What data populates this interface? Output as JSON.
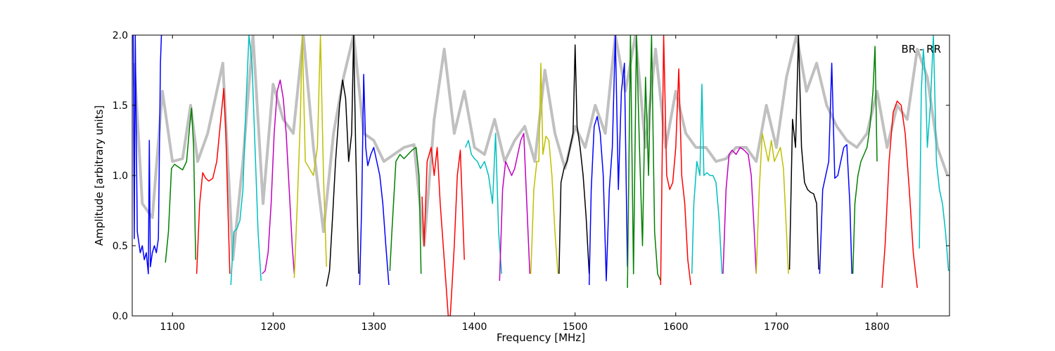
{
  "chart_data": {
    "type": "line",
    "title": "",
    "xlabel": "Frequency [MHz]",
    "ylabel": "Amplitude [arbitrary units]",
    "xlim": [
      1060,
      1872
    ],
    "ylim": [
      0,
      2.0
    ],
    "xticks": [
      1100,
      1200,
      1300,
      1400,
      1500,
      1600,
      1700,
      1800
    ],
    "yticks": [
      0.0,
      0.5,
      1.0,
      1.5,
      2.0
    ],
    "xtick_labels": [
      "1100",
      "1200",
      "1300",
      "1400",
      "1500",
      "1600",
      "1700",
      "1800"
    ],
    "ytick_labels": [
      "0.0",
      "0.5",
      "1.0",
      "1.5",
      "2.0"
    ],
    "grid": false,
    "annotation": "BR - RR",
    "background_color": "#c0c0c0",
    "background_series": {
      "x": [
        1062,
        1070,
        1080,
        1090,
        1100,
        1110,
        1118,
        1125,
        1135,
        1150,
        1160,
        1170,
        1180,
        1190,
        1200,
        1210,
        1220,
        1230,
        1240,
        1250,
        1260,
        1270,
        1280,
        1290,
        1300,
        1310,
        1320,
        1330,
        1340,
        1350,
        1360,
        1370,
        1380,
        1390,
        1400,
        1410,
        1420,
        1430,
        1440,
        1450,
        1460,
        1470,
        1480,
        1490,
        1500,
        1510,
        1520,
        1530,
        1540,
        1550,
        1560,
        1570,
        1580,
        1590,
        1600,
        1610,
        1620,
        1630,
        1640,
        1650,
        1660,
        1670,
        1680,
        1690,
        1700,
        1710,
        1720,
        1730,
        1740,
        1750,
        1760,
        1770,
        1780,
        1790,
        1800,
        1810,
        1820,
        1830,
        1840,
        1850,
        1860,
        1870
      ],
      "y": [
        1.8,
        0.8,
        0.7,
        1.6,
        1.1,
        1.12,
        1.5,
        1.1,
        1.3,
        1.8,
        0.4,
        1.1,
        2.0,
        0.8,
        1.65,
        1.4,
        1.3,
        2.0,
        1.2,
        0.6,
        1.3,
        1.7,
        2.0,
        1.3,
        1.25,
        1.1,
        1.15,
        1.2,
        1.22,
        0.5,
        1.4,
        1.9,
        1.3,
        1.6,
        1.2,
        1.15,
        1.4,
        1.1,
        1.25,
        1.35,
        1.1,
        1.75,
        1.3,
        1.05,
        1.35,
        1.2,
        1.5,
        1.3,
        2.0,
        1.6,
        2.0,
        1.2,
        1.9,
        1.2,
        1.6,
        1.3,
        1.2,
        1.2,
        1.1,
        1.12,
        1.2,
        1.2,
        1.1,
        1.5,
        1.2,
        1.7,
        2.0,
        1.6,
        1.8,
        1.5,
        1.35,
        1.25,
        1.2,
        1.3,
        1.6,
        1.2,
        1.5,
        1.4,
        1.9,
        1.7,
        1.2,
        1.0
      ]
    },
    "series": [
      {
        "color": "#0000ff",
        "x": [
          1061,
          1062,
          1063,
          1065,
          1068,
          1070,
          1072,
          1074,
          1076,
          1077,
          1078,
          1080,
          1082,
          1084,
          1086,
          1088,
          1089,
          1090
        ],
        "y": [
          2.0,
          0.55,
          2.0,
          0.6,
          0.45,
          0.5,
          0.4,
          0.45,
          0.3,
          1.25,
          0.35,
          0.45,
          0.5,
          0.45,
          0.55,
          1.8,
          2.0,
          2.0
        ]
      },
      {
        "color": "#008000",
        "x": [
          1093,
          1096,
          1099,
          1102,
          1106,
          1110,
          1114,
          1117,
          1119,
          1121,
          1123
        ],
        "y": [
          0.38,
          0.6,
          1.05,
          1.08,
          1.06,
          1.04,
          1.1,
          1.35,
          1.48,
          1.2,
          0.4
        ]
      },
      {
        "color": "#ff0000",
        "x": [
          1124,
          1127,
          1130,
          1133,
          1136,
          1140,
          1144,
          1148,
          1151,
          1153,
          1155,
          1157
        ],
        "y": [
          0.3,
          0.8,
          1.02,
          0.98,
          0.96,
          0.98,
          1.1,
          1.4,
          1.62,
          1.3,
          0.8,
          0.3
        ]
      },
      {
        "color": "#00bfbf",
        "x": [
          1158,
          1161,
          1164,
          1167,
          1170,
          1173,
          1176,
          1179,
          1182,
          1185,
          1188
        ],
        "y": [
          0.22,
          0.6,
          0.62,
          0.68,
          0.9,
          1.5,
          2.0,
          1.8,
          1.2,
          0.6,
          0.25
        ]
      },
      {
        "color": "#bf00bf",
        "x": [
          1189,
          1192,
          1195,
          1198,
          1201,
          1204,
          1207,
          1210,
          1213,
          1216,
          1219,
          1221
        ],
        "y": [
          0.3,
          0.32,
          0.45,
          0.8,
          1.3,
          1.6,
          1.68,
          1.55,
          1.3,
          0.9,
          0.5,
          0.3
        ]
      },
      {
        "color": "#bfbf00",
        "x": [
          1221,
          1224,
          1227,
          1229,
          1232,
          1236,
          1240,
          1244,
          1247,
          1250,
          1253
        ],
        "y": [
          0.27,
          0.8,
          1.4,
          2.0,
          1.1,
          1.05,
          1.0,
          1.2,
          2.0,
          1.0,
          0.35
        ]
      },
      {
        "color": "#000000",
        "x": [
          1253,
          1256,
          1259,
          1262,
          1266,
          1269,
          1272,
          1275,
          1278,
          1280,
          1282,
          1285
        ],
        "y": [
          0.21,
          0.32,
          0.7,
          1.1,
          1.5,
          1.68,
          1.55,
          1.1,
          1.3,
          2.0,
          1.2,
          0.3
        ]
      },
      {
        "color": "#0000ff",
        "x": [
          1286,
          1288,
          1290,
          1292,
          1294,
          1297,
          1300,
          1303,
          1306,
          1309,
          1312,
          1315
        ],
        "y": [
          0.22,
          0.8,
          1.72,
          1.2,
          1.07,
          1.15,
          1.2,
          1.1,
          1.0,
          0.8,
          0.5,
          0.22
        ]
      },
      {
        "color": "#008000",
        "x": [
          1316,
          1318,
          1322,
          1326,
          1330,
          1334,
          1338,
          1342,
          1345,
          1347
        ],
        "y": [
          0.32,
          0.6,
          1.1,
          1.15,
          1.12,
          1.15,
          1.18,
          1.2,
          1.0,
          0.3
        ]
      },
      {
        "color": "#ff0000",
        "x": [
          1348,
          1350,
          1353,
          1357,
          1360,
          1363,
          1366,
          1369,
          1372,
          1374,
          1376,
          1378,
          1380,
          1383,
          1386,
          1390
        ],
        "y": [
          0.85,
          0.5,
          1.1,
          1.2,
          1.0,
          1.2,
          0.8,
          0.5,
          0.2,
          0.0,
          0.0,
          0.25,
          0.5,
          1.0,
          1.18,
          0.4
        ]
      },
      {
        "color": "#00bfbf",
        "x": [
          1391,
          1394,
          1397,
          1400,
          1403,
          1406,
          1410,
          1414,
          1418,
          1421,
          1424,
          1427
        ],
        "y": [
          1.2,
          1.25,
          1.15,
          1.12,
          1.1,
          1.05,
          1.1,
          1.0,
          0.8,
          1.3,
          0.6,
          0.3
        ]
      },
      {
        "color": "#bf00bf",
        "x": [
          1425,
          1428,
          1431,
          1434,
          1437,
          1440,
          1443,
          1446,
          1449,
          1452,
          1455
        ],
        "y": [
          0.25,
          0.9,
          1.1,
          1.05,
          1.0,
          1.05,
          1.15,
          1.25,
          1.3,
          0.8,
          0.3
        ]
      },
      {
        "color": "#bfbf00",
        "x": [
          1456,
          1459,
          1462,
          1464,
          1466,
          1468,
          1471,
          1474,
          1477,
          1480,
          1483
        ],
        "y": [
          0.3,
          0.9,
          1.1,
          1.1,
          1.8,
          1.15,
          1.28,
          1.25,
          1.0,
          0.6,
          0.3
        ]
      },
      {
        "color": "#000000",
        "x": [
          1484,
          1486,
          1489,
          1492,
          1495,
          1498,
          1500,
          1502,
          1505,
          1508,
          1511,
          1514
        ],
        "y": [
          0.3,
          0.95,
          1.05,
          1.1,
          1.2,
          1.3,
          1.93,
          1.35,
          1.2,
          1.0,
          0.7,
          0.3
        ]
      },
      {
        "color": "#0000ff",
        "x": [
          1514,
          1516,
          1519,
          1522,
          1525,
          1528,
          1531,
          1534,
          1537,
          1540,
          1543,
          1546,
          1549,
          1552
        ],
        "y": [
          0.22,
          0.9,
          1.35,
          1.42,
          1.3,
          1.0,
          0.25,
          0.9,
          1.2,
          2.0,
          0.9,
          1.6,
          1.8,
          0.35
        ]
      },
      {
        "color": "#008000",
        "x": [
          1552,
          1555,
          1558,
          1561,
          1564,
          1567,
          1570,
          1573,
          1576,
          1579,
          1582,
          1585
        ],
        "y": [
          0.2,
          2.0,
          0.3,
          2.0,
          1.2,
          0.5,
          1.7,
          1.0,
          2.0,
          0.6,
          0.3,
          0.25
        ]
      },
      {
        "color": "#ff0000",
        "x": [
          1585,
          1588,
          1591,
          1594,
          1597,
          1600,
          1603,
          1606,
          1609,
          1612,
          1615
        ],
        "y": [
          0.22,
          2.0,
          1.0,
          0.9,
          0.95,
          1.2,
          1.76,
          1.0,
          0.8,
          0.4,
          0.22
        ]
      },
      {
        "color": "#00bfbf",
        "x": [
          1616,
          1618,
          1621,
          1624,
          1626,
          1628,
          1631,
          1634,
          1637,
          1640,
          1643,
          1646
        ],
        "y": [
          0.3,
          0.8,
          1.1,
          1.0,
          1.65,
          1.0,
          1.02,
          1.0,
          1.0,
          0.95,
          0.7,
          0.3
        ]
      },
      {
        "color": "#bf00bf",
        "x": [
          1647,
          1650,
          1653,
          1656,
          1660,
          1664,
          1668,
          1672,
          1675,
          1678,
          1680
        ],
        "y": [
          0.3,
          0.9,
          1.15,
          1.18,
          1.15,
          1.2,
          1.18,
          1.15,
          1.0,
          0.6,
          0.3
        ]
      },
      {
        "color": "#bfbf00",
        "x": [
          1680,
          1683,
          1686,
          1689,
          1692,
          1695,
          1698,
          1701,
          1704,
          1707,
          1710,
          1712
        ],
        "y": [
          0.3,
          0.9,
          1.3,
          1.2,
          1.1,
          1.25,
          1.1,
          1.15,
          1.2,
          1.05,
          0.6,
          0.3
        ]
      },
      {
        "color": "#000000",
        "x": [
          1713,
          1716,
          1719,
          1722,
          1725,
          1728,
          1731,
          1734,
          1737,
          1740,
          1742
        ],
        "y": [
          0.33,
          1.4,
          1.2,
          2.0,
          1.2,
          0.95,
          0.9,
          0.88,
          0.87,
          0.8,
          0.33
        ]
      },
      {
        "color": "#0000ff",
        "x": [
          1743,
          1746,
          1749,
          1752,
          1755,
          1758,
          1761,
          1764,
          1767,
          1770,
          1773,
          1775
        ],
        "y": [
          0.3,
          0.9,
          1.0,
          1.1,
          1.8,
          0.98,
          1.0,
          1.1,
          1.2,
          1.22,
          0.8,
          0.3
        ]
      },
      {
        "color": "#008000",
        "x": [
          1776,
          1778,
          1781,
          1784,
          1787,
          1790,
          1793,
          1796,
          1798,
          1800
        ],
        "y": [
          0.3,
          0.8,
          1.0,
          1.1,
          1.15,
          1.2,
          1.35,
          1.6,
          1.92,
          1.1
        ]
      },
      {
        "color": "#ff0000",
        "x": [
          1805,
          1808,
          1812,
          1816,
          1820,
          1824,
          1828,
          1832,
          1836,
          1840
        ],
        "y": [
          0.2,
          0.5,
          1.1,
          1.45,
          1.53,
          1.5,
          1.3,
          0.9,
          0.45,
          0.2
        ]
      },
      {
        "color": "#00bfbf",
        "x": [
          1842,
          1844,
          1846,
          1848,
          1850,
          1853,
          1856,
          1859,
          1862,
          1865,
          1868,
          1871
        ],
        "y": [
          0.48,
          1.6,
          1.9,
          1.7,
          1.2,
          1.5,
          2.0,
          1.1,
          0.9,
          0.8,
          0.6,
          0.32
        ]
      }
    ]
  }
}
